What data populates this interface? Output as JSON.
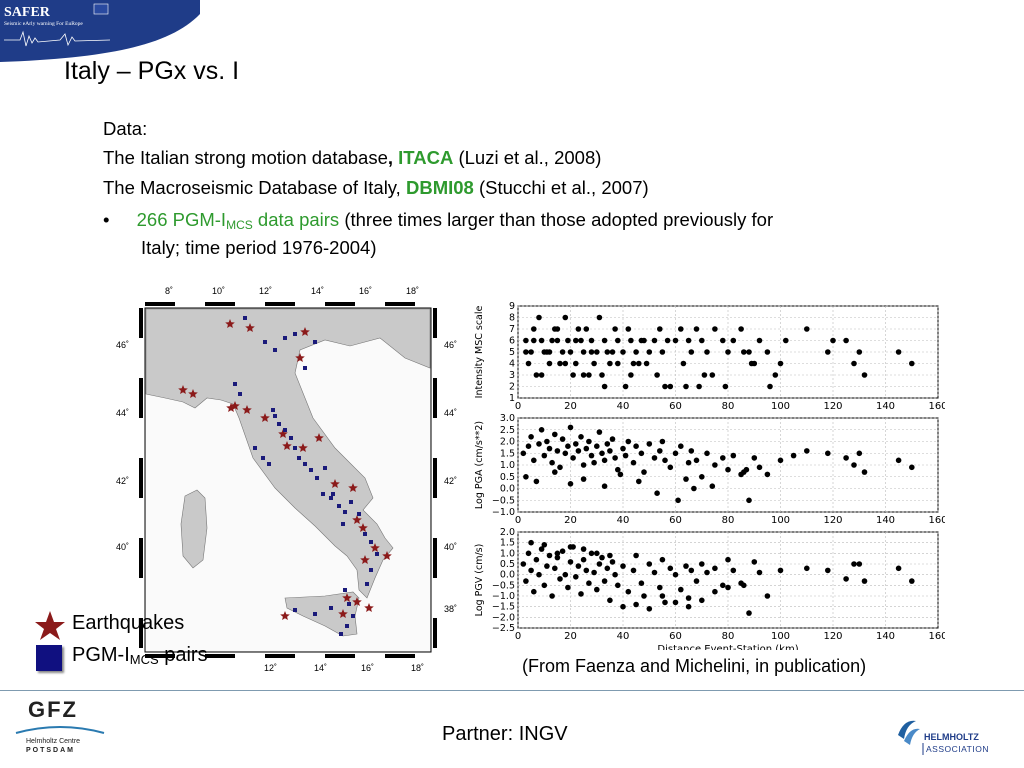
{
  "banner": {
    "title": "SAFER",
    "subtitle": "Seismic eArly warning For EuRope"
  },
  "slide": {
    "title": "Italy – PGx vs. I"
  },
  "body": {
    "data_label": "Data:",
    "line1_prefix": "The Italian strong motion database",
    "line1_comma": ",",
    "line1_name": "ITACA",
    "line1_suffix": "(Luzi et al., 2008)",
    "line2_prefix": "The Macroseismic Database of Italy,",
    "line2_name": "DBMI08",
    "line2_suffix": "(Stucchi et al., 2007)",
    "bullet_symbol": "•",
    "bullet_green_a": "266 PGM-I",
    "bullet_green_sub": "MCS",
    "bullet_green_b": "data pairs",
    "bullet_rest": "(three times larger than those adopted previously for",
    "bullet_line2": "Italy; time period 1976-2004)"
  },
  "map": {
    "top_ticks": [
      "8˚",
      "10˚",
      "12˚",
      "14˚",
      "16˚",
      "18˚"
    ],
    "bottom_ticks": [
      "12˚",
      "14˚",
      "16˚",
      "18˚"
    ],
    "left_ticks": [
      "46˚",
      "44˚",
      "42˚",
      "40˚"
    ],
    "right_ticks": [
      "46˚",
      "44˚",
      "42˚",
      "40˚",
      "38˚"
    ],
    "colors": {
      "star": "#8b1a1a",
      "square": "#1a1a7a"
    }
  },
  "legend": {
    "earthquakes": "Earthquakes",
    "pgm_a": "PGM-I",
    "pgm_sub": "MCS",
    "pgm_b": "pairs"
  },
  "caption": "(From Faenza and Michelini, in publication)",
  "footer": {
    "partner": "Partner: INGV",
    "gfz_name": "GFZ",
    "gfz_sub1": "Helmholtz Centre",
    "gfz_sub2": "POTSDAM",
    "helm1": "HELMHOLTZ",
    "helm2": "ASSOCIATION"
  },
  "chart_data": [
    {
      "type": "scatter",
      "ylabel": "Intensity MSC scale",
      "xlabel": "",
      "xlim": [
        0,
        160
      ],
      "ylim": [
        1,
        9
      ],
      "xticks": [
        "0",
        "20",
        "40",
        "60",
        "80",
        "100",
        "120",
        "140",
        "160"
      ],
      "yticks": [
        "1",
        "2",
        "3",
        "4",
        "5",
        "6",
        "7",
        "8",
        "9"
      ],
      "x": [
        3,
        5,
        6,
        8,
        9,
        10,
        12,
        14,
        15,
        17,
        18,
        19,
        20,
        22,
        23,
        24,
        25,
        27,
        28,
        30,
        31,
        33,
        34,
        35,
        37,
        38,
        40,
        42,
        43,
        45,
        46,
        48,
        50,
        52,
        54,
        55,
        57,
        60,
        62,
        65,
        66,
        68,
        70,
        72,
        75,
        78,
        80,
        82,
        85,
        88,
        90,
        92,
        95,
        100,
        102,
        110,
        118,
        125,
        128,
        130,
        132,
        145,
        150,
        4,
        7,
        11,
        13,
        16,
        21,
        26,
        29,
        32,
        36,
        41,
        44,
        47,
        53,
        58,
        63,
        69,
        74,
        86,
        96,
        3,
        6,
        9,
        12,
        15,
        18,
        22,
        25,
        28,
        33,
        38,
        43,
        49,
        56,
        64,
        71,
        79,
        89,
        98,
        120
      ],
      "y": [
        6,
        5,
        7,
        8,
        6,
        5,
        4,
        7,
        6,
        5,
        8,
        6,
        5,
        4,
        7,
        6,
        5,
        3,
        6,
        5,
        8,
        6,
        5,
        4,
        7,
        6,
        5,
        7,
        6,
        5,
        4,
        6,
        5,
        6,
        7,
        5,
        6,
        6,
        7,
        6,
        5,
        7,
        6,
        5,
        7,
        6,
        5,
        6,
        7,
        5,
        4,
        6,
        5,
        4,
        6,
        7,
        5,
        6,
        4,
        5,
        3,
        5,
        4,
        4,
        3,
        5,
        6,
        4,
        3,
        7,
        4,
        3,
        5,
        2,
        4,
        6,
        3,
        2,
        4,
        2,
        3,
        5,
        2,
        5,
        6,
        3,
        5,
        7,
        4,
        6,
        3,
        5,
        2,
        4,
        3,
        4,
        2,
        2,
        3,
        2,
        4,
        3,
        6
      ]
    },
    {
      "type": "scatter",
      "ylabel": "Log PGA (cm/s**2)",
      "xlabel": "",
      "xlim": [
        0,
        160
      ],
      "ylim": [
        -1.0,
        3.0
      ],
      "xticks": [
        "0",
        "20",
        "40",
        "60",
        "80",
        "100",
        "120",
        "140",
        "160"
      ],
      "yticks": [
        "−1.0",
        "−0.5",
        "0.0",
        "0.5",
        "1.0",
        "1.5",
        "2.0",
        "2.5",
        "3.0"
      ],
      "x": [
        2,
        4,
        5,
        6,
        8,
        9,
        10,
        11,
        12,
        13,
        14,
        15,
        16,
        17,
        18,
        19,
        20,
        21,
        22,
        23,
        24,
        25,
        26,
        27,
        28,
        29,
        30,
        31,
        32,
        33,
        34,
        35,
        36,
        37,
        38,
        40,
        41,
        42,
        44,
        45,
        47,
        48,
        50,
        52,
        54,
        55,
        56,
        58,
        60,
        62,
        64,
        65,
        66,
        68,
        70,
        72,
        75,
        78,
        80,
        82,
        85,
        86,
        88,
        90,
        92,
        95,
        100,
        105,
        110,
        118,
        125,
        128,
        130,
        132,
        145,
        150,
        3,
        7,
        14,
        20,
        25,
        33,
        39,
        46,
        53,
        61,
        67,
        74,
        87
      ],
      "y": [
        1.5,
        1.8,
        2.2,
        1.2,
        1.9,
        2.5,
        1.4,
        2.0,
        1.7,
        1.1,
        2.3,
        1.6,
        0.9,
        2.1,
        1.5,
        1.8,
        2.6,
        1.3,
        1.9,
        1.6,
        2.2,
        1.0,
        1.7,
        2.0,
        1.4,
        1.1,
        1.8,
        2.4,
        1.5,
        1.2,
        1.9,
        1.6,
        2.1,
        1.3,
        0.8,
        1.7,
        1.4,
        2.0,
        1.1,
        1.8,
        1.5,
        0.7,
        1.9,
        1.3,
        1.6,
        2.0,
        1.2,
        0.9,
        1.5,
        1.8,
        0.4,
        1.1,
        1.6,
        1.2,
        0.5,
        1.5,
        1.0,
        1.3,
        0.8,
        1.4,
        0.6,
        0.7,
        -0.5,
        1.3,
        0.9,
        0.6,
        1.2,
        1.4,
        1.6,
        1.5,
        1.3,
        1.0,
        1.5,
        0.7,
        1.2,
        0.9,
        0.5,
        0.3,
        0.7,
        0.2,
        0.4,
        0.1,
        0.6,
        0.3,
        -0.2,
        -0.5,
        0.0,
        0.1,
        0.8
      ]
    },
    {
      "type": "scatter",
      "ylabel": "Log PGV (cm/s)",
      "xlabel": "Distance Event-Station (km)",
      "xlim": [
        0,
        160
      ],
      "ylim": [
        -2.5,
        2.0
      ],
      "xticks": [
        "0",
        "20",
        "40",
        "60",
        "80",
        "100",
        "120",
        "140",
        "160"
      ],
      "yticks": [
        "−2.5",
        "−2.0",
        "−1.5",
        "−1.0",
        "−0.5",
        "0.0",
        "0.5",
        "1.0",
        "1.5",
        "2.0"
      ],
      "x": [
        2,
        3,
        4,
        5,
        6,
        7,
        8,
        9,
        10,
        11,
        12,
        13,
        14,
        15,
        16,
        17,
        18,
        19,
        20,
        21,
        22,
        23,
        24,
        25,
        26,
        27,
        28,
        29,
        30,
        31,
        32,
        33,
        34,
        35,
        36,
        37,
        38,
        40,
        42,
        44,
        45,
        47,
        48,
        50,
        52,
        54,
        55,
        56,
        58,
        60,
        62,
        64,
        65,
        66,
        68,
        70,
        72,
        75,
        78,
        80,
        82,
        85,
        86,
        88,
        90,
        92,
        95,
        100,
        110,
        118,
        125,
        128,
        130,
        132,
        145,
        150,
        5,
        10,
        15,
        20,
        25,
        30,
        35,
        40,
        45,
        50,
        55,
        60,
        65,
        70,
        75,
        80
      ],
      "y": [
        0.5,
        -0.3,
        1.0,
        0.2,
        -0.8,
        0.7,
        0.0,
        1.2,
        -0.5,
        0.4,
        0.9,
        -1.0,
        0.3,
        0.8,
        -0.2,
        1.1,
        0.0,
        -0.6,
        0.6,
        1.3,
        -0.1,
        0.4,
        -0.9,
        0.7,
        0.2,
        -0.4,
        1.0,
        0.1,
        -0.7,
        0.5,
        0.8,
        -0.3,
        0.3,
        -1.2,
        0.6,
        0.0,
        -0.5,
        0.4,
        -0.8,
        0.2,
        0.9,
        -0.4,
        -1.0,
        0.5,
        0.1,
        -0.6,
        0.7,
        -1.3,
        0.3,
        0.0,
        -0.7,
        0.4,
        -1.1,
        0.2,
        -0.3,
        0.5,
        0.1,
        0.3,
        -0.5,
        0.7,
        0.2,
        -0.4,
        -0.5,
        -1.8,
        0.6,
        0.1,
        -1.0,
        0.2,
        0.3,
        0.2,
        -0.2,
        0.5,
        0.5,
        -0.3,
        0.3,
        -0.3,
        1.5,
        1.4,
        1.0,
        1.3,
        1.2,
        1.0,
        0.9,
        -1.5,
        -1.4,
        -1.6,
        -1.0,
        -1.3,
        -1.5,
        -1.2,
        -0.8,
        -0.6
      ]
    }
  ]
}
